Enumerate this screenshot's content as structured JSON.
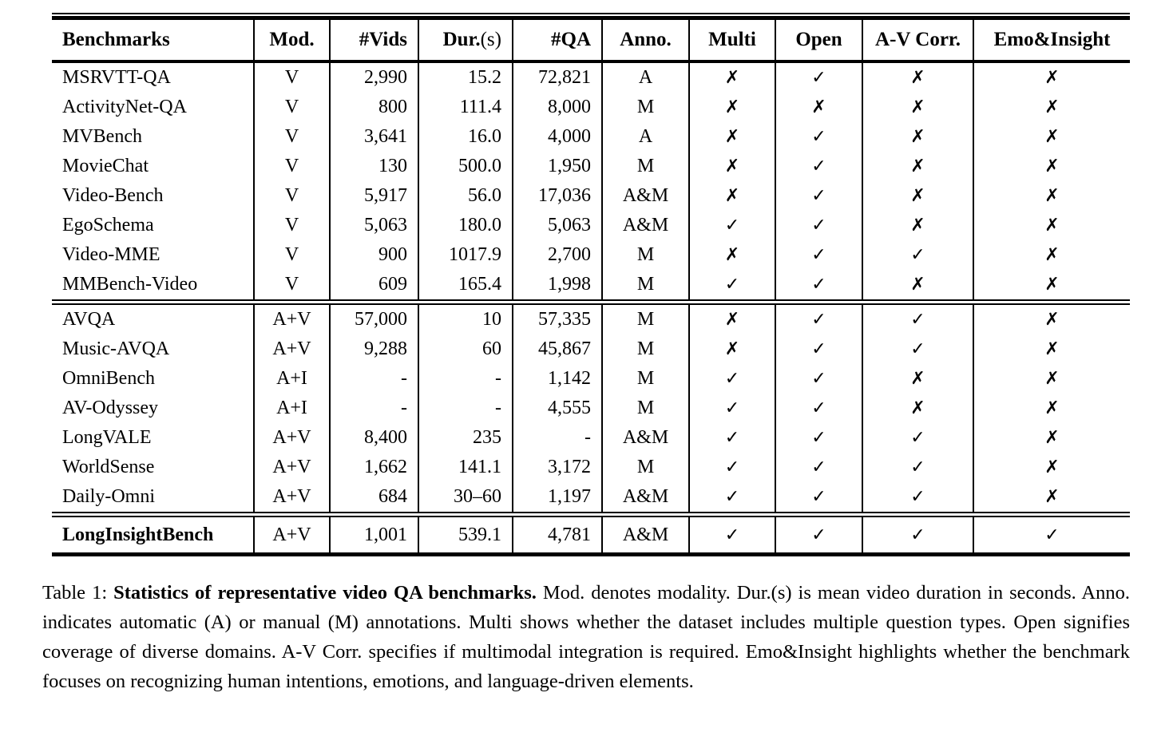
{
  "colors": {
    "text": "#000000",
    "background": "#ffffff",
    "rule": "#000000"
  },
  "symbols": {
    "check": "✓",
    "cross": "✗"
  },
  "table": {
    "header": [
      {
        "label": "Benchmarks"
      },
      {
        "label": "Mod."
      },
      {
        "label": "#Vids"
      },
      {
        "label": "Dur.",
        "label_normal": "(s)"
      },
      {
        "label": "#QA"
      },
      {
        "label": "Anno."
      },
      {
        "label": "Multi"
      },
      {
        "label": "Open"
      },
      {
        "label": "A-V Corr."
      },
      {
        "label": "Emo&Insight"
      }
    ],
    "groups": [
      {
        "rows": [
          {
            "cells": [
              "MSRVTT-QA",
              "V",
              "2,990",
              "15.2",
              "72,821",
              "A",
              "✗",
              "✓",
              "✗",
              "✗"
            ]
          },
          {
            "cells": [
              "ActivityNet-QA",
              "V",
              "800",
              "111.4",
              "8,000",
              "M",
              "✗",
              "✗",
              "✗",
              "✗"
            ]
          },
          {
            "cells": [
              "MVBench",
              "V",
              "3,641",
              "16.0",
              "4,000",
              "A",
              "✗",
              "✓",
              "✗",
              "✗"
            ]
          },
          {
            "cells": [
              "MovieChat",
              "V",
              "130",
              "500.0",
              "1,950",
              "M",
              "✗",
              "✓",
              "✗",
              "✗"
            ]
          },
          {
            "cells": [
              "Video-Bench",
              "V",
              "5,917",
              "56.0",
              "17,036",
              "A&M",
              "✗",
              "✓",
              "✗",
              "✗"
            ]
          },
          {
            "cells": [
              "EgoSchema",
              "V",
              "5,063",
              "180.0",
              "5,063",
              "A&M",
              "✓",
              "✓",
              "✗",
              "✗"
            ]
          },
          {
            "cells": [
              "Video-MME",
              "V",
              "900",
              "1017.9",
              "2,700",
              "M",
              "✗",
              "✓",
              "✓",
              "✗"
            ]
          },
          {
            "cells": [
              "MMBench-Video",
              "V",
              "609",
              "165.4",
              "1,998",
              "M",
              "✓",
              "✓",
              "✗",
              "✗"
            ]
          }
        ]
      },
      {
        "rows": [
          {
            "cells": [
              "AVQA",
              "A+V",
              "57,000",
              "10",
              "57,335",
              "M",
              "✗",
              "✓",
              "✓",
              "✗"
            ]
          },
          {
            "cells": [
              "Music-AVQA",
              "A+V",
              "9,288",
              "60",
              "45,867",
              "M",
              "✗",
              "✓",
              "✓",
              "✗"
            ]
          },
          {
            "cells": [
              "OmniBench",
              "A+I",
              "-",
              "-",
              "1,142",
              "M",
              "✓",
              "✓",
              "✗",
              "✗"
            ]
          },
          {
            "cells": [
              "AV-Odyssey",
              "A+I",
              "-",
              "-",
              "4,555",
              "M",
              "✓",
              "✓",
              "✗",
              "✗"
            ]
          },
          {
            "cells": [
              "LongVALE",
              "A+V",
              "8,400",
              "235",
              "-",
              "A&M",
              "✓",
              "✓",
              "✓",
              "✗"
            ]
          },
          {
            "cells": [
              "WorldSense",
              "A+V",
              "1,662",
              "141.1",
              "3,172",
              "M",
              "✓",
              "✓",
              "✓",
              "✗"
            ]
          },
          {
            "cells": [
              "Daily-Omni",
              "A+V",
              "684",
              "30–60",
              "1,197",
              "A&M",
              "✓",
              "✓",
              "✓",
              "✗"
            ]
          }
        ]
      },
      {
        "rows": [
          {
            "cells": [
              "LongInsightBench",
              "A+V",
              "1,001",
              "539.1",
              "4,781",
              "A&M",
              "✓",
              "✓",
              "✓",
              "✓"
            ],
            "bold": true
          }
        ]
      }
    ]
  },
  "caption": {
    "prefix": "Table 1: ",
    "bold": "Statistics of representative video QA benchmarks.",
    "text": " Mod. denotes modality. Dur.(s) is mean video duration in seconds. Anno. indicates automatic (A) or manual (M) annotations. Multi shows whether the dataset includes multiple question types. Open signifies coverage of diverse domains. A-V Corr. specifies if multimodal integration is required. Emo&Insight highlights whether the benchmark focuses on recognizing human intentions, emotions, and language-driven elements."
  }
}
